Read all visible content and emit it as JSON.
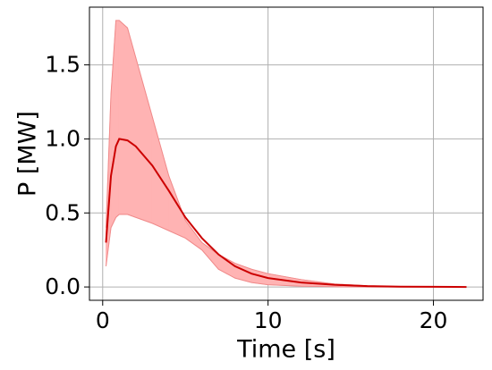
{
  "chart_data": {
    "type": "line",
    "xlabel": "Time [s]",
    "ylabel": "P [MW]",
    "x": [
      0.2,
      0.5,
      0.8,
      1.0,
      1.5,
      2,
      3,
      4,
      5,
      6,
      7,
      8,
      9,
      10,
      12,
      14,
      16,
      18,
      20,
      22
    ],
    "series": [
      {
        "color": "#cc0000",
        "values": [
          0.3,
          0.75,
          0.95,
          1.0,
          0.99,
          0.95,
          0.82,
          0.65,
          0.47,
          0.33,
          0.22,
          0.14,
          0.09,
          0.06,
          0.03,
          0.015,
          0.006,
          0.002,
          0.001,
          0
        ]
      }
    ],
    "band": {
      "color": "#ffb3b3",
      "edge_color": "#f08a8a",
      "upper": [
        0.4,
        1.3,
        1.8,
        1.8,
        1.75,
        1.55,
        1.15,
        0.75,
        0.45,
        0.3,
        0.22,
        0.16,
        0.12,
        0.09,
        0.05,
        0.02,
        0.008,
        0.003,
        0.001,
        0
      ],
      "lower": [
        0.14,
        0.4,
        0.47,
        0.49,
        0.49,
        0.47,
        0.43,
        0.38,
        0.33,
        0.25,
        0.12,
        0.06,
        0.03,
        0.015,
        0.005,
        0.002,
        0,
        0,
        0,
        0
      ]
    },
    "xlim": [
      -0.8,
      23
    ],
    "ylim": [
      -0.09,
      1.89
    ],
    "xticks": [
      0,
      10,
      20
    ],
    "yticks": [
      {
        "value": 0,
        "label": "0.0"
      },
      0.5,
      {
        "value": 1,
        "label": "1.0"
      },
      1.5
    ],
    "grid": true
  }
}
